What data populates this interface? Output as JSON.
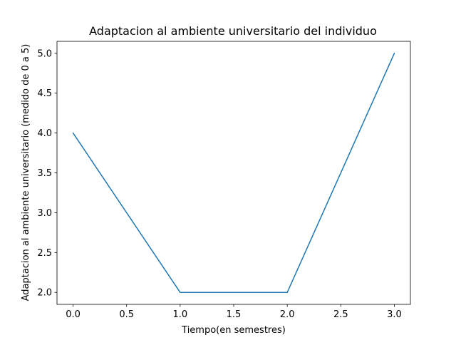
{
  "chart_data": {
    "type": "line",
    "title": "Adaptacion al ambiente universitario del individuo",
    "xlabel": "Tiempo(en semestres)",
    "ylabel": "Adaptacion al ambiente universitario (medido de 0 a 5)",
    "x": [
      0.0,
      1.0,
      2.0,
      3.0
    ],
    "series": [
      {
        "values": [
          4.0,
          2.0,
          2.0,
          5.0
        ],
        "color": "#1f77b4"
      }
    ],
    "xlim": [
      -0.15,
      3.15
    ],
    "ylim": [
      1.85,
      5.15
    ],
    "xticks": [
      0.0,
      0.5,
      1.0,
      1.5,
      2.0,
      2.5,
      3.0
    ],
    "xtick_labels": [
      "0.0",
      "0.5",
      "1.0",
      "1.5",
      "2.0",
      "2.5",
      "3.0"
    ],
    "yticks": [
      2.0,
      2.5,
      3.0,
      3.5,
      4.0,
      4.5,
      5.0
    ],
    "ytick_labels": [
      "2.0",
      "2.5",
      "3.0",
      "3.5",
      "4.0",
      "4.5",
      "5.0"
    ],
    "grid": false,
    "legend": "none"
  }
}
